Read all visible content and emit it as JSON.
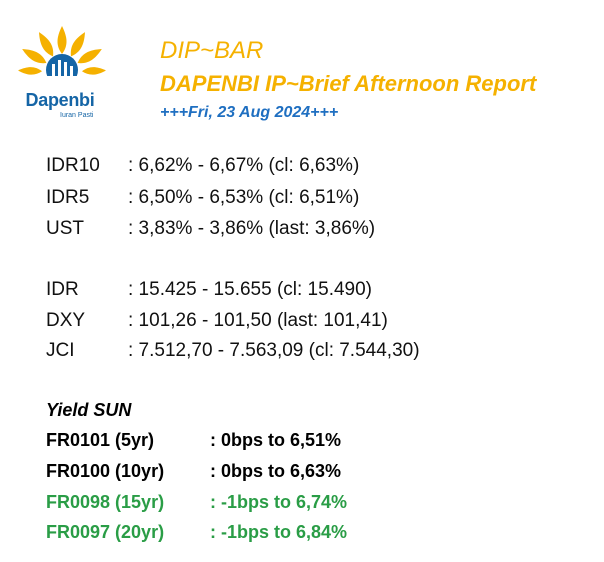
{
  "logo": {
    "brand": "Dapenbi",
    "tagline": "Iuran Pasti",
    "icon": "sun-pension-logo-icon"
  },
  "header": {
    "title": "DIP~BAR",
    "subtitle": "DAPENBI IP~Brief Afternoon Report",
    "date": "+++Fri, 23 Aug 2024+++"
  },
  "yields": [
    {
      "label": "IDR10",
      "value": ": 6,62% - 6,67% (cl: 6,63%)"
    },
    {
      "label": "IDR5",
      "value": ": 6,50% - 6,53% (cl: 6,51%)"
    },
    {
      "label": "UST",
      "value": ": 3,83% - 3,86% (last: 3,86%)"
    }
  ],
  "markets": [
    {
      "label": "IDR",
      "value": ": 15.425 - 15.655 (cl: 15.490)"
    },
    {
      "label": "DXY",
      "value": ": 101,26 - 101,50 (last: 101,41)"
    },
    {
      "label": "JCI",
      "value": ": 7.512,70 - 7.563,09 (cl: 7.544,30)"
    }
  ],
  "yield_sun": {
    "title": "Yield SUN",
    "items": [
      {
        "label": "FR0101 (5yr)",
        "value": ": 0bps to 6,51%",
        "color": "#000000"
      },
      {
        "label": "FR0100 (10yr)",
        "value": ": 0bps to 6,63%",
        "color": "#000000"
      },
      {
        "label": "FR0098 (15yr)",
        "value": ": -1bps to 6,74%",
        "color": "#2a9d46"
      },
      {
        "label": "FR0097 (20yr)",
        "value": ": -1bps to 6,84%",
        "color": "#2a9d46"
      }
    ]
  },
  "colors": {
    "accent": "#f5b100",
    "date": "#1f6fc1",
    "brand": "#1565a6",
    "down": "#2a9d46"
  }
}
